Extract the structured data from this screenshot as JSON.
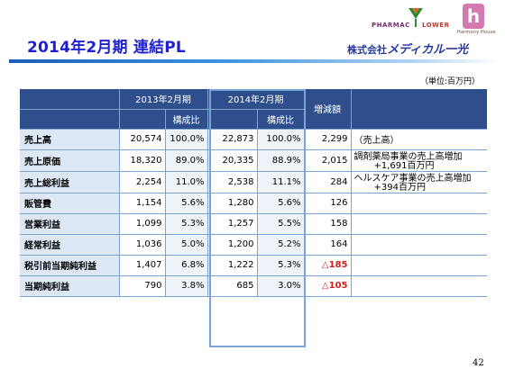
{
  "header": {
    "title": "2014年2月期 連結PL",
    "logo_pharmacy": "PHARMAC",
    "logo_flower": "LOWER",
    "logo_h": "h",
    "logo_h_sub": "Harmony House",
    "logo_company_prefix": "株式会社",
    "logo_company_brand": "メディカル一光"
  },
  "unit_note": "（単位:百万円）",
  "table": {
    "headers": {
      "fy2013": "2013年2月期",
      "fy2014": "2014年2月期",
      "composition": "構成比",
      "change": "増減額"
    },
    "rows": [
      {
        "label": "売上高",
        "fy2013": "20,574",
        "ratio2013": "100.0%",
        "fy2014": "22,873",
        "ratio2014": "100.0%",
        "change": "2,299"
      },
      {
        "label": "売上原価",
        "fy2013": "18,320",
        "ratio2013": "89.0%",
        "fy2014": "20,335",
        "ratio2014": "88.9%",
        "change": "2,015"
      },
      {
        "label": "売上総利益",
        "fy2013": "2,254",
        "ratio2013": "11.0%",
        "fy2014": "2,538",
        "ratio2014": "11.1%",
        "change": "284"
      },
      {
        "label": "販管費",
        "fy2013": "1,154",
        "ratio2013": "5.6%",
        "fy2014": "1,280",
        "ratio2014": "5.6%",
        "change": "126"
      },
      {
        "label": "営業利益",
        "fy2013": "1,099",
        "ratio2013": "5.3%",
        "fy2014": "1,257",
        "ratio2014": "5.5%",
        "change": "158"
      },
      {
        "label": "経常利益",
        "fy2013": "1,036",
        "ratio2013": "5.0%",
        "fy2014": "1,200",
        "ratio2014": "5.2%",
        "change": "164"
      },
      {
        "label": "税引前当期純利益",
        "fy2013": "1,407",
        "ratio2013": "6.8%",
        "fy2014": "1,222",
        "ratio2014": "5.3%",
        "change": "△185"
      },
      {
        "label": "当期純利益",
        "fy2013": "790",
        "ratio2013": "3.8%",
        "fy2014": "685",
        "ratio2014": "3.0%",
        "change": "△105"
      }
    ],
    "notes": {
      "sales_label": "（売上高）",
      "pharmacy_line1": "調剤薬局事業の売上高増加",
      "pharmacy_line2": "+1,691百万円",
      "healthcare_line1": "ヘルスケア事業の売上高増加",
      "healthcare_line2": "+394百万円"
    }
  },
  "page_number": "42"
}
